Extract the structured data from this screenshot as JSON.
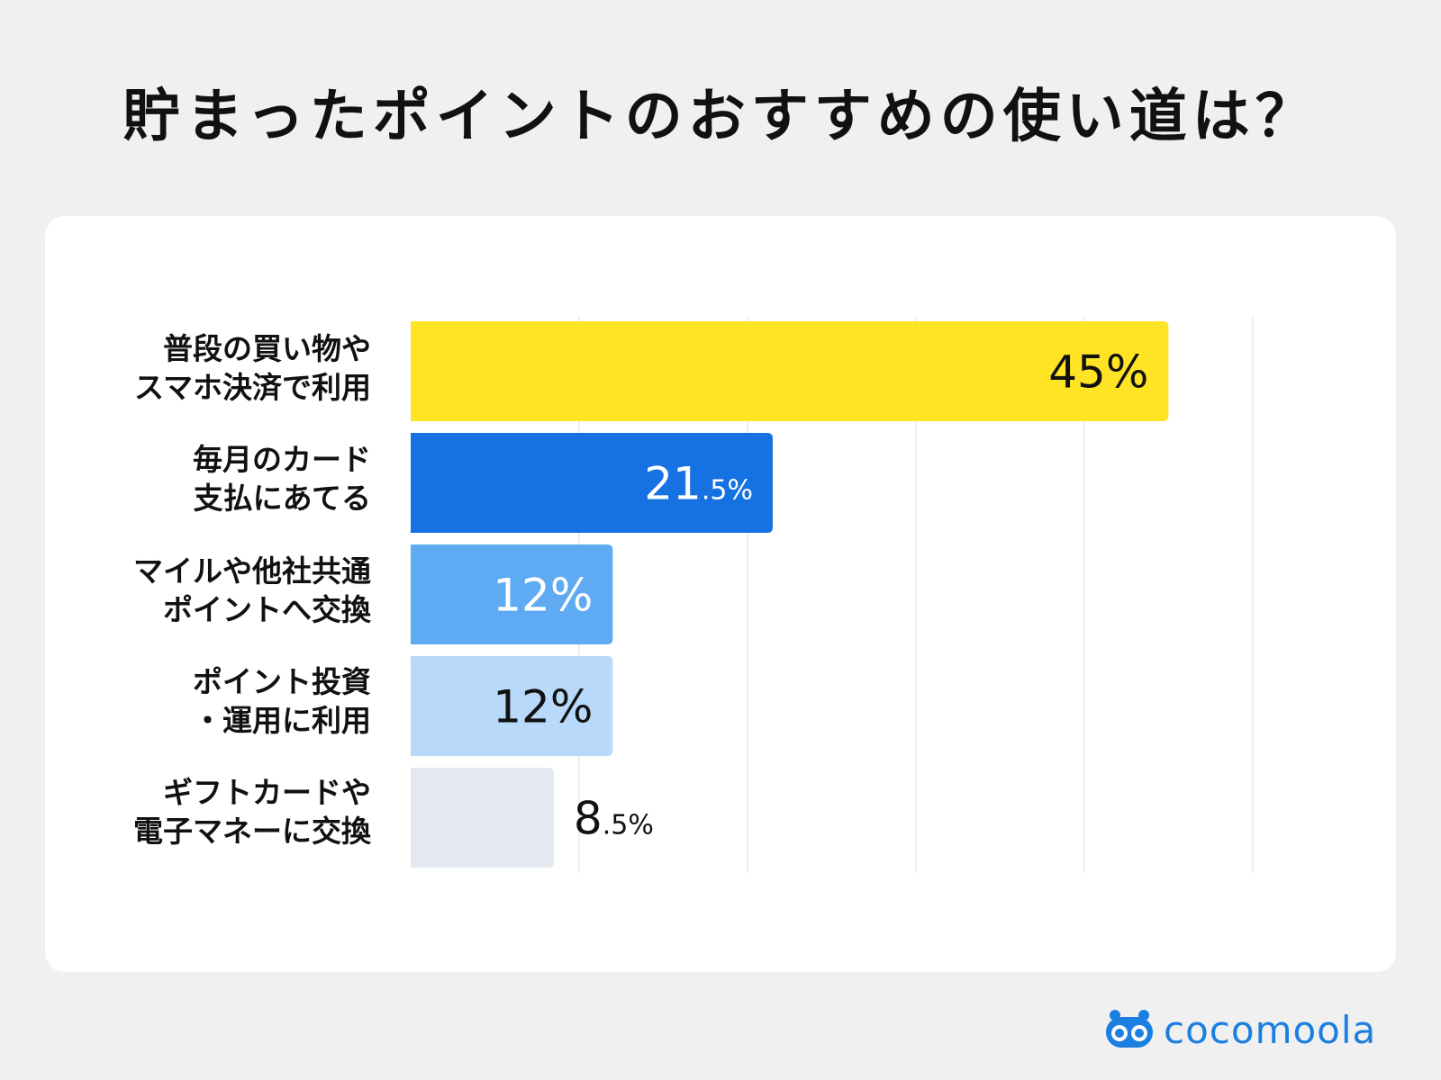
{
  "title": "貯まったポイントのおすすめの使い道は？",
  "brand": {
    "name": "cocomoola",
    "color": "#1a7fe0"
  },
  "colors": {
    "bars": [
      "#ffe426",
      "#1672e3",
      "#5eabf3",
      "#b9d9fa",
      "#e4e9f0"
    ],
    "value_text": [
      "#111111",
      "#ffffff",
      "#ffffff",
      "#111111",
      "#111111"
    ],
    "grid": "#eeeeee"
  },
  "chart_data": {
    "type": "bar",
    "orientation": "horizontal",
    "title": "貯まったポイントのおすすめの使い道は？",
    "categories": [
      [
        "普段の買い物や",
        "スマホ決済で利用"
      ],
      [
        "毎月のカード",
        "支払にあてる"
      ],
      [
        "マイルや他社共通",
        "ポイントへ交換"
      ],
      [
        "ポイント投資",
        "・運用に利用"
      ],
      [
        "ギフトカードや",
        "電子マネーに交換"
      ]
    ],
    "values": [
      45,
      21.5,
      12,
      12,
      8.5
    ],
    "value_labels": [
      "45%",
      "21.5%",
      "12%",
      "12%",
      "8.5%"
    ],
    "unit": "%",
    "xlim": [
      0,
      50
    ],
    "grid": true,
    "legend": false
  }
}
